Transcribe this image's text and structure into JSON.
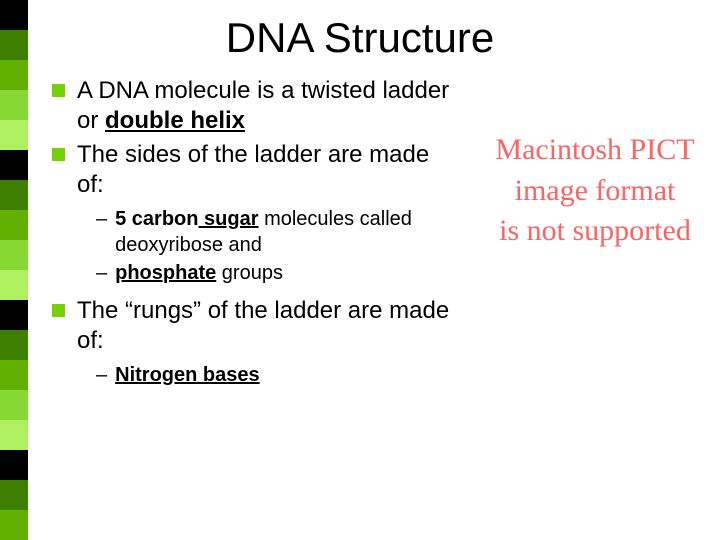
{
  "sidebar": {
    "colors": [
      "#000000",
      "#3e7e00",
      "#62b000",
      "#86d933",
      "#aef060",
      "#000000",
      "#3e7e00",
      "#62b000",
      "#86d933",
      "#aef060",
      "#000000",
      "#3e7e00",
      "#62b000",
      "#86d933",
      "#aef060",
      "#000000",
      "#3e7e00",
      "#62b000"
    ]
  },
  "title": "DNA Structure",
  "bullets": [
    {
      "parts": [
        {
          "t": "A DNA molecule is a twisted ladder or ",
          "b": false,
          "u": false
        },
        {
          "t": "double helix",
          "b": true,
          "u": true
        }
      ]
    },
    {
      "parts": [
        {
          "t": "The sides of the ladder are made of:",
          "b": false,
          "u": false
        }
      ],
      "subs": [
        {
          "parts": [
            {
              "t": "5 carbon",
              "b": true,
              "u": false
            },
            {
              "t": " sugar",
              "b": true,
              "u": true
            },
            {
              "t": " molecules called deoxyribose and",
              "b": false,
              "u": false
            }
          ]
        },
        {
          "parts": [
            {
              "t": "phosphate",
              "b": true,
              "u": true
            },
            {
              "t": " groups",
              "b": false,
              "u": false
            }
          ]
        }
      ]
    },
    {
      "parts": [
        {
          "t": "The “rungs” of the ladder are made of:",
          "b": false,
          "u": false
        }
      ],
      "subs": [
        {
          "parts": [
            {
              "t": "Nitrogen bases",
              "b": true,
              "u": true
            }
          ]
        }
      ]
    }
  ],
  "placeholder": {
    "line1": "Macintosh PICT",
    "line2": "image format",
    "line3": "is not supported"
  },
  "style": {
    "bullet_color": "#73d200",
    "placeholder_color": "#ff6262",
    "title_fontsize": 42,
    "bullet_fontsize": 24,
    "sub_fontsize": 20,
    "background": "#ffffff"
  }
}
